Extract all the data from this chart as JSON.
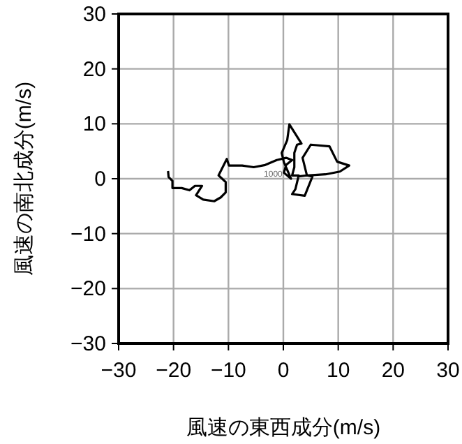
{
  "chart_data": {
    "type": "line",
    "xlabel": "風速の東西成分(m/s)",
    "ylabel": "風速の南北成分(m/s)",
    "xlim": [
      -30,
      30
    ],
    "ylim": [
      -30,
      30
    ],
    "xticks": [
      -30,
      -20,
      -10,
      0,
      10,
      20,
      30
    ],
    "yticks": [
      -30,
      -20,
      -10,
      0,
      10,
      20,
      30
    ],
    "grid": true,
    "marker": "none",
    "line_style": "solid",
    "annotations": [
      {
        "text": "1000",
        "x": 0.1,
        "y": 1.1
      }
    ],
    "series": [
      {
        "color": "#000000",
        "x": [
          -21,
          -20.9,
          -20.2,
          -20.2,
          -18.5,
          -17.1,
          -16.1,
          -14.8,
          -15.9,
          -14.6,
          -12.6,
          -11.4,
          -10.5,
          -10.5,
          -11.8,
          -10.3,
          -9.9,
          -7.5,
          -5.4,
          -3.3,
          -1.2,
          0.5,
          1.6,
          0.5,
          0.1,
          1.4,
          0.1,
          -0.3,
          0.7,
          1.1,
          3.3,
          2.5,
          2,
          2,
          1.6,
          2.8,
          2.2,
          1.6,
          3.9,
          5.3,
          4.3,
          3.5,
          5,
          8.4,
          9.8,
          12,
          10.3,
          7.7,
          4.3,
          2.6
        ],
        "values": [
          1.4,
          0.3,
          -0.4,
          -1.7,
          -1.7,
          -2.1,
          -1.3,
          -1.3,
          -3,
          -3.8,
          -4.1,
          -3.4,
          -2.5,
          -0.6,
          0.6,
          3.6,
          2.4,
          2.4,
          2.1,
          2.5,
          3.4,
          3.8,
          3.4,
          2.5,
          1.1,
          0,
          3,
          4.7,
          7,
          9.9,
          6.4,
          6.2,
          4.7,
          2.1,
          0.6,
          0.6,
          -1.9,
          -2.8,
          -3.1,
          0.4,
          0.6,
          3.8,
          6.2,
          5.9,
          3.1,
          2.4,
          1.3,
          0.8,
          0.6,
          0.4
        ]
      }
    ]
  }
}
